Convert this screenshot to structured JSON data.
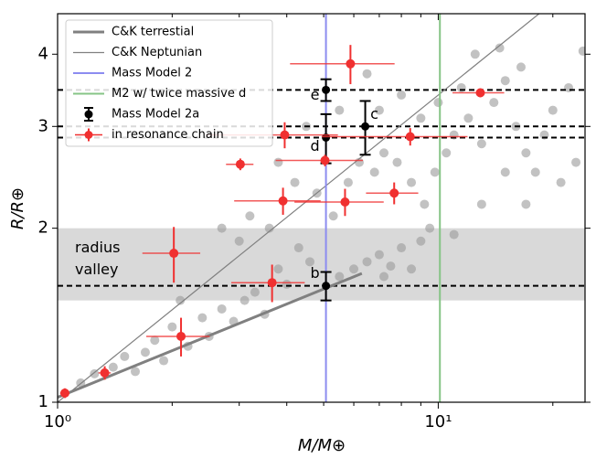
{
  "chart_data": {
    "type": "scatter",
    "xlabel": "M/M⊕",
    "ylabel": "R/R⊕",
    "log_x": true,
    "log_y": true,
    "xlim": [
      1,
      24.3
    ],
    "ylim": [
      1,
      4.7
    ],
    "xticks": [
      {
        "value": 1,
        "label": "10⁰"
      },
      {
        "value": 10,
        "label": "10¹"
      }
    ],
    "xticks_minor": [
      2,
      3,
      4,
      5,
      6,
      7,
      8,
      9,
      20
    ],
    "yticks": [
      1,
      2,
      3,
      4
    ],
    "legend": "upper left",
    "band": {
      "range": [
        1.5,
        2.0
      ],
      "color": "#d9d9d9",
      "label": [
        "radius",
        "valley"
      ]
    },
    "hlines": [
      1.59,
      2.87,
      3.0,
      3.47
    ],
    "gray_points": {
      "color": "#9a9a9a",
      "x": [
        1.15,
        1.25,
        1.4,
        1.5,
        1.6,
        1.7,
        1.8,
        1.9,
        2.0,
        2.2,
        2.4,
        2.5,
        2.7,
        2.9,
        3.1,
        3.3,
        3.5,
        3.8,
        4.0,
        4.3,
        4.6,
        5.5,
        6,
        6.5,
        7,
        7.5,
        8,
        9,
        3,
        2.7,
        3.2,
        3.6,
        4.2,
        4.8,
        5.3,
        5.8,
        6.2,
        6.8,
        7.2,
        7.8,
        8.5,
        9.2,
        9.8,
        10.5,
        11,
        12,
        13,
        14,
        15,
        16,
        17,
        18,
        19,
        20,
        21,
        22,
        23,
        12.5,
        14.5,
        16.5,
        11.5,
        10,
        9,
        8,
        7,
        6.5,
        4.5,
        5.5,
        3.8,
        9.5,
        11,
        8.5,
        7.2,
        24,
        2.1,
        13,
        15,
        17
      ],
      "y": [
        1.08,
        1.12,
        1.15,
        1.2,
        1.13,
        1.22,
        1.28,
        1.18,
        1.35,
        1.25,
        1.4,
        1.3,
        1.45,
        1.38,
        1.5,
        1.55,
        1.42,
        1.7,
        1.6,
        1.85,
        1.75,
        1.65,
        1.7,
        1.75,
        1.8,
        1.72,
        1.85,
        1.9,
        1.9,
        2.0,
        2.1,
        2.0,
        2.4,
        2.3,
        2.1,
        2.4,
        2.6,
        2.5,
        2.7,
        2.6,
        2.4,
        2.2,
        2.5,
        2.7,
        2.9,
        3.1,
        2.8,
        3.3,
        3.6,
        3.0,
        2.7,
        2.5,
        2.9,
        3.2,
        2.4,
        3.5,
        2.6,
        4.0,
        4.1,
        3.8,
        3.5,
        3.3,
        3.1,
        3.4,
        3.2,
        3.7,
        3.0,
        3.2,
        2.6,
        2.0,
        1.95,
        1.7,
        1.65,
        4.05,
        1.5,
        2.2,
        2.5,
        2.2
      ]
    },
    "series": [
      {
        "name": "C&K terrestial",
        "kind": "line",
        "color": "#808080",
        "width": 3,
        "x": [
          1,
          6.3
        ],
        "y": [
          1.02,
          1.67
        ]
      },
      {
        "name": "C&K Neptunian",
        "kind": "line",
        "color": "#808080",
        "width": 1.2,
        "x": [
          1,
          18.4
        ],
        "y": [
          1.0,
          4.7
        ]
      },
      {
        "name": "Mass Model 2",
        "kind": "vline",
        "color": "#8c8cf0",
        "x": 5.07
      },
      {
        "name": "M2 w/ twice massive d",
        "kind": "vline",
        "color": "#86c486",
        "x": 10.1
      },
      {
        "name": "Mass Model 2a",
        "kind": "errorbar",
        "color": "#000000",
        "x": [
          5.07,
          5.07,
          5.07,
          6.43
        ],
        "y": [
          1.59,
          2.87,
          3.47,
          3.0
        ],
        "yerr": [
          0.09,
          0.28,
          0.15,
          0.32
        ],
        "labels": [
          "b",
          "d",
          "e",
          "c"
        ]
      },
      {
        "name": "in resonance chain",
        "kind": "errorbar",
        "color": "#f03030",
        "x": [
          1.045,
          1.33,
          2.11,
          2.02,
          3.02,
          3.66,
          3.91,
          3.95,
          5.04,
          5.69,
          5.88,
          7.66,
          8.44,
          12.9
        ],
        "y": [
          1.037,
          1.124,
          1.3,
          1.81,
          2.58,
          1.61,
          2.23,
          2.9,
          2.62,
          2.22,
          3.85,
          2.3,
          2.88,
          3.43
        ],
        "xerr": [
          0.03,
          0.05,
          0.4,
          0.35,
          0.25,
          0.8,
          1.0,
          1.5,
          1.3,
          1.5,
          1.8,
          1.2,
          3.5,
          2.0
        ],
        "yerr": [
          0.02,
          0.03,
          0.1,
          0.2,
          0.06,
          0.12,
          0.12,
          0.15,
          0.06,
          0.12,
          0.3,
          0.1,
          0.1,
          0.06
        ]
      }
    ]
  }
}
